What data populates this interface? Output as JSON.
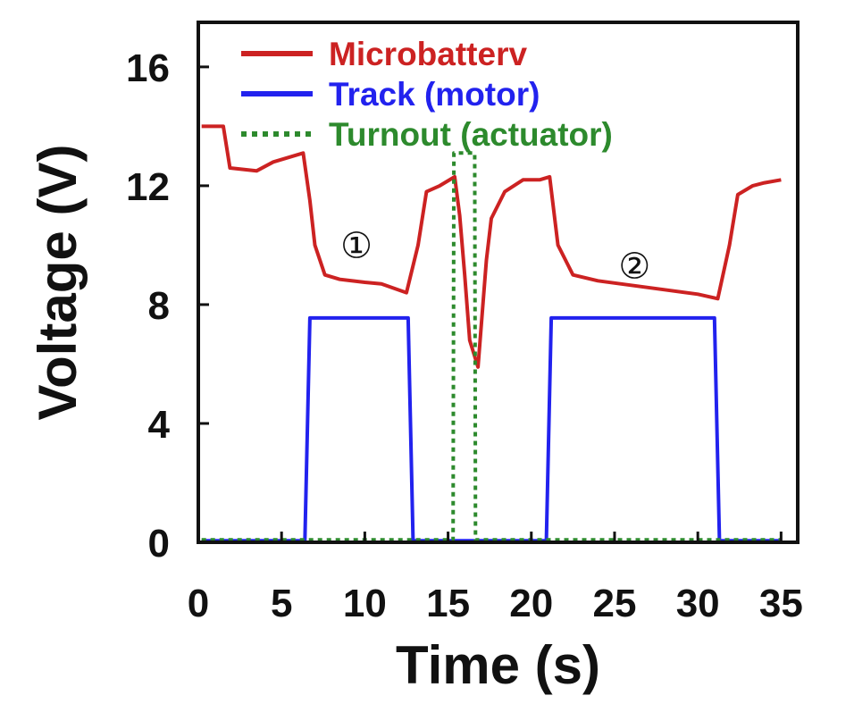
{
  "chart_data": {
    "type": "line",
    "title": "",
    "xlabel": "Time (s)",
    "ylabel": "Voltage (V)",
    "xlim": [
      0,
      36
    ],
    "ylim": [
      0,
      17.5
    ],
    "xticks": [
      "0",
      "5",
      "10",
      "15",
      "20",
      "25",
      "30",
      "35"
    ],
    "yticks": [
      "0",
      "4",
      "8",
      "12",
      "16"
    ],
    "grid": false,
    "legend_position": "top-left",
    "series": [
      {
        "name": "Microbatterv",
        "color": "#cc2222",
        "style": "solid",
        "points": [
          [
            0.2,
            14.0
          ],
          [
            1.5,
            14.0
          ],
          [
            1.9,
            12.6
          ],
          [
            3.5,
            12.5
          ],
          [
            4.5,
            12.8
          ],
          [
            6.3,
            13.1
          ],
          [
            6.7,
            11.5
          ],
          [
            7.0,
            10.0
          ],
          [
            7.6,
            9.0
          ],
          [
            8.5,
            8.85
          ],
          [
            10.0,
            8.75
          ],
          [
            11.0,
            8.7
          ],
          [
            12.5,
            8.4
          ],
          [
            13.2,
            10.0
          ],
          [
            13.7,
            11.8
          ],
          [
            14.5,
            12.0
          ],
          [
            15.4,
            12.3
          ],
          [
            15.7,
            11.0
          ],
          [
            16.0,
            9.0
          ],
          [
            16.3,
            6.8
          ],
          [
            16.8,
            5.9
          ],
          [
            17.3,
            9.5
          ],
          [
            17.6,
            10.9
          ],
          [
            18.4,
            11.8
          ],
          [
            19.5,
            12.2
          ],
          [
            20.5,
            12.2
          ],
          [
            21.1,
            12.3
          ],
          [
            21.6,
            10.0
          ],
          [
            22.5,
            9.0
          ],
          [
            24.0,
            8.8
          ],
          [
            26.0,
            8.65
          ],
          [
            28.0,
            8.5
          ],
          [
            30.0,
            8.35
          ],
          [
            31.2,
            8.2
          ],
          [
            31.9,
            10.0
          ],
          [
            32.4,
            11.7
          ],
          [
            33.3,
            12.0
          ],
          [
            34.0,
            12.1
          ],
          [
            35.0,
            12.2
          ]
        ]
      },
      {
        "name": "Track (motor)",
        "color": "#2222ee",
        "style": "solid",
        "points": [
          [
            0.2,
            0.05
          ],
          [
            6.4,
            0.05
          ],
          [
            6.7,
            7.55
          ],
          [
            12.6,
            7.55
          ],
          [
            12.9,
            0.05
          ],
          [
            20.9,
            0.05
          ],
          [
            21.2,
            7.55
          ],
          [
            31.0,
            7.55
          ],
          [
            31.3,
            0.05
          ],
          [
            35.0,
            0.05
          ]
        ]
      },
      {
        "name": "Turnout (actuator)",
        "color": "#2d8a2d",
        "style": "dotted",
        "points": [
          [
            0.2,
            0.08
          ],
          [
            15.3,
            0.08
          ],
          [
            15.35,
            13.1
          ],
          [
            16.6,
            13.1
          ],
          [
            16.65,
            0.08
          ],
          [
            35.0,
            0.08
          ]
        ]
      }
    ],
    "annotations": [
      {
        "text": "①",
        "x": 9.5,
        "y": 10.0
      },
      {
        "text": "②",
        "x": 26.2,
        "y": 9.3
      }
    ]
  }
}
